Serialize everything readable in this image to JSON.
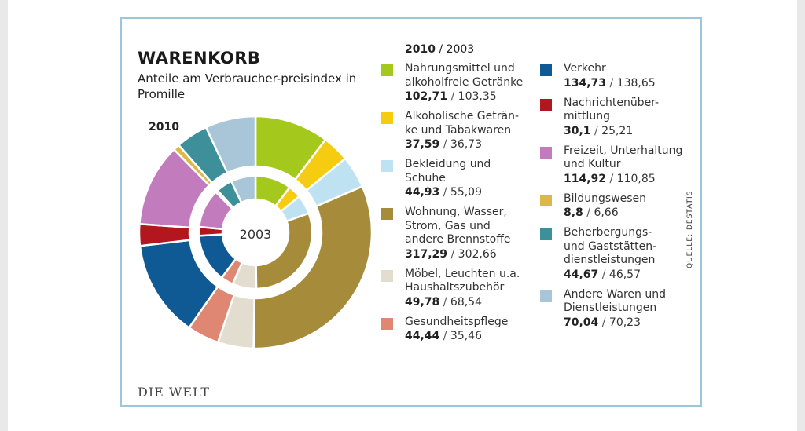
{
  "chart_data": {
    "type": "pie",
    "title": "WARENKORB",
    "subtitle": "Anteile am Verbraucher-preisindex in Promille",
    "outer_year_label": "2010",
    "inner_year_label": "2003",
    "legend_header_bold": "2010",
    "legend_header_rest": "/ 2003",
    "categories": [
      {
        "line1": "Nahrungsmittel und",
        "line2": "alkoholfreie Getränke",
        "line3": "",
        "v2010": "102,71",
        "v2003": "103,35",
        "color": "#a4c91c"
      },
      {
        "line1": "Alkoholische Geträn-",
        "line2": "ke und Tabakwaren",
        "line3": "",
        "v2010": "37,59",
        "v2003": "36,73",
        "color": "#f6cc11"
      },
      {
        "line1": "Bekleidung und",
        "line2": "Schuhe",
        "line3": "",
        "v2010": "44,93",
        "v2003": "55,09",
        "color": "#bfe2f2"
      },
      {
        "line1": "Wohnung, Wasser,",
        "line2": "Strom, Gas und",
        "line3": "andere Brennstoffe",
        "v2010": "317,29",
        "v2003": "302,66",
        "color": "#a68c3a"
      },
      {
        "line1": "Möbel, Leuchten u.a.",
        "line2": "Haushaltszubehör",
        "line3": "",
        "v2010": "49,78",
        "v2003": "68,54",
        "color": "#e3ddd0"
      },
      {
        "line1": "Gesundheitspflege",
        "line2": "",
        "line3": "",
        "v2010": "44,44",
        "v2003": "35,46",
        "color": "#df8772"
      },
      {
        "line1": "Verkehr",
        "line2": "",
        "line3": "",
        "v2010": "134,73",
        "v2003": "138,65",
        "color": "#0f5a94"
      },
      {
        "line1": "Nachrichtenüber-",
        "line2": "mittlung",
        "line3": "",
        "v2010": "30,1",
        "v2003": "25,21",
        "color": "#b3161e"
      },
      {
        "line1": "Freizeit, Unterhaltung",
        "line2": "und Kultur",
        "line3": "",
        "v2010": "114,92",
        "v2003": "110,85",
        "color": "#c27bbd"
      },
      {
        "line1": "Bildungswesen",
        "line2": "",
        "line3": "",
        "v2010": "8,8",
        "v2003": "6,66",
        "color": "#dcb84a"
      },
      {
        "line1": "Beherbergungs-",
        "line2": "und Gaststätten-",
        "line3": "dienstleistungen",
        "v2010": "44,67",
        "v2003": "46,57",
        "color": "#3d8f99"
      },
      {
        "line1": "Andere Waren und",
        "line2": "Dienstleistungen",
        "line3": "",
        "v2010": "70,04",
        "v2003": "70,23",
        "color": "#a9c6d8"
      }
    ],
    "series": [
      {
        "name": "2010",
        "values": [
          102.71,
          37.59,
          44.93,
          317.29,
          49.78,
          44.44,
          134.73,
          30.1,
          114.92,
          8.8,
          44.67,
          70.04
        ]
      },
      {
        "name": "2003",
        "values": [
          103.35,
          36.73,
          55.09,
          302.66,
          68.54,
          35.46,
          138.65,
          25.21,
          110.85,
          6.66,
          46.57,
          70.23
        ]
      }
    ],
    "source": "QUELLE: DESTATIS",
    "logo": "DIE WELT"
  }
}
